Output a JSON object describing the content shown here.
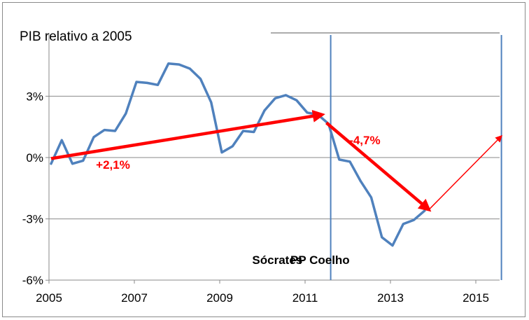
{
  "colors": {
    "series": "#4f81bd",
    "arrows": "#ff0000",
    "vlines": "#4f81bd",
    "grid": "#8a8a8a"
  },
  "chart_data": {
    "type": "line",
    "title": "PIB relativo a 2005",
    "xlabel": "",
    "ylabel": "",
    "xlim": [
      2005,
      2015.6
    ],
    "ylim": [
      -6,
      6
    ],
    "grid": true,
    "x_ticks": [
      "2005",
      "2007",
      "2009",
      "2011",
      "2013",
      "2015"
    ],
    "y_ticks": [
      "3%",
      "0%",
      "-3%",
      "-6%"
    ],
    "series": [
      {
        "values": [
          {
            "x": 2005.05,
            "y": -0.3
          },
          {
            "x": 2005.3,
            "y": 0.85
          },
          {
            "x": 2005.55,
            "y": -0.3
          },
          {
            "x": 2005.8,
            "y": -0.15
          },
          {
            "x": 2006.05,
            "y": 1.0
          },
          {
            "x": 2006.3,
            "y": 1.35
          },
          {
            "x": 2006.55,
            "y": 1.3
          },
          {
            "x": 2006.8,
            "y": 2.15
          },
          {
            "x": 2007.05,
            "y": 3.7
          },
          {
            "x": 2007.3,
            "y": 3.65
          },
          {
            "x": 2007.55,
            "y": 3.55
          },
          {
            "x": 2007.8,
            "y": 4.6
          },
          {
            "x": 2008.05,
            "y": 4.55
          },
          {
            "x": 2008.3,
            "y": 4.35
          },
          {
            "x": 2008.55,
            "y": 3.85
          },
          {
            "x": 2008.8,
            "y": 2.7
          },
          {
            "x": 2009.05,
            "y": 0.25
          },
          {
            "x": 2009.3,
            "y": 0.55
          },
          {
            "x": 2009.55,
            "y": 1.3
          },
          {
            "x": 2009.8,
            "y": 1.25
          },
          {
            "x": 2010.05,
            "y": 2.3
          },
          {
            "x": 2010.3,
            "y": 2.9
          },
          {
            "x": 2010.55,
            "y": 3.05
          },
          {
            "x": 2010.8,
            "y": 2.8
          },
          {
            "x": 2011.05,
            "y": 2.2
          },
          {
            "x": 2011.3,
            "y": 2.1
          },
          {
            "x": 2011.55,
            "y": 1.65
          },
          {
            "x": 2011.8,
            "y": -0.1
          },
          {
            "x": 2012.05,
            "y": -0.2
          },
          {
            "x": 2012.3,
            "y": -1.15
          },
          {
            "x": 2012.55,
            "y": -1.95
          },
          {
            "x": 2012.8,
            "y": -3.9
          },
          {
            "x": 2013.05,
            "y": -4.3
          },
          {
            "x": 2013.3,
            "y": -3.25
          },
          {
            "x": 2013.55,
            "y": -3.05
          },
          {
            "x": 2013.8,
            "y": -2.6
          }
        ]
      }
    ],
    "trend_arrows": [
      {
        "label": "+2,1%",
        "from": {
          "x": 2005.05,
          "y": -0.05
        },
        "to": {
          "x": 2011.4,
          "y": 2.1
        },
        "weight": "thick",
        "label_at": {
          "x": 2006.5,
          "y": -0.55
        }
      },
      {
        "label": "-4,7%",
        "from": {
          "x": 2011.5,
          "y": 1.7
        },
        "to": {
          "x": 2013.9,
          "y": -2.55
        },
        "weight": "thick",
        "label_at": {
          "x": 2012.4,
          "y": 0.65
        }
      },
      {
        "label": "",
        "from": {
          "x": 2013.9,
          "y": -2.55
        },
        "to": {
          "x": 2015.6,
          "y": 1.05
        },
        "weight": "thin"
      }
    ],
    "period_markers": [
      {
        "x": 2011.6,
        "label": ""
      },
      {
        "x": 2015.6,
        "label": ""
      }
    ],
    "period_labels": [
      {
        "label": "Sócrates",
        "x": 2010.35,
        "y": -5.2
      },
      {
        "label": "PP Coelho",
        "x": 2011.35,
        "y": -5.2
      }
    ]
  }
}
